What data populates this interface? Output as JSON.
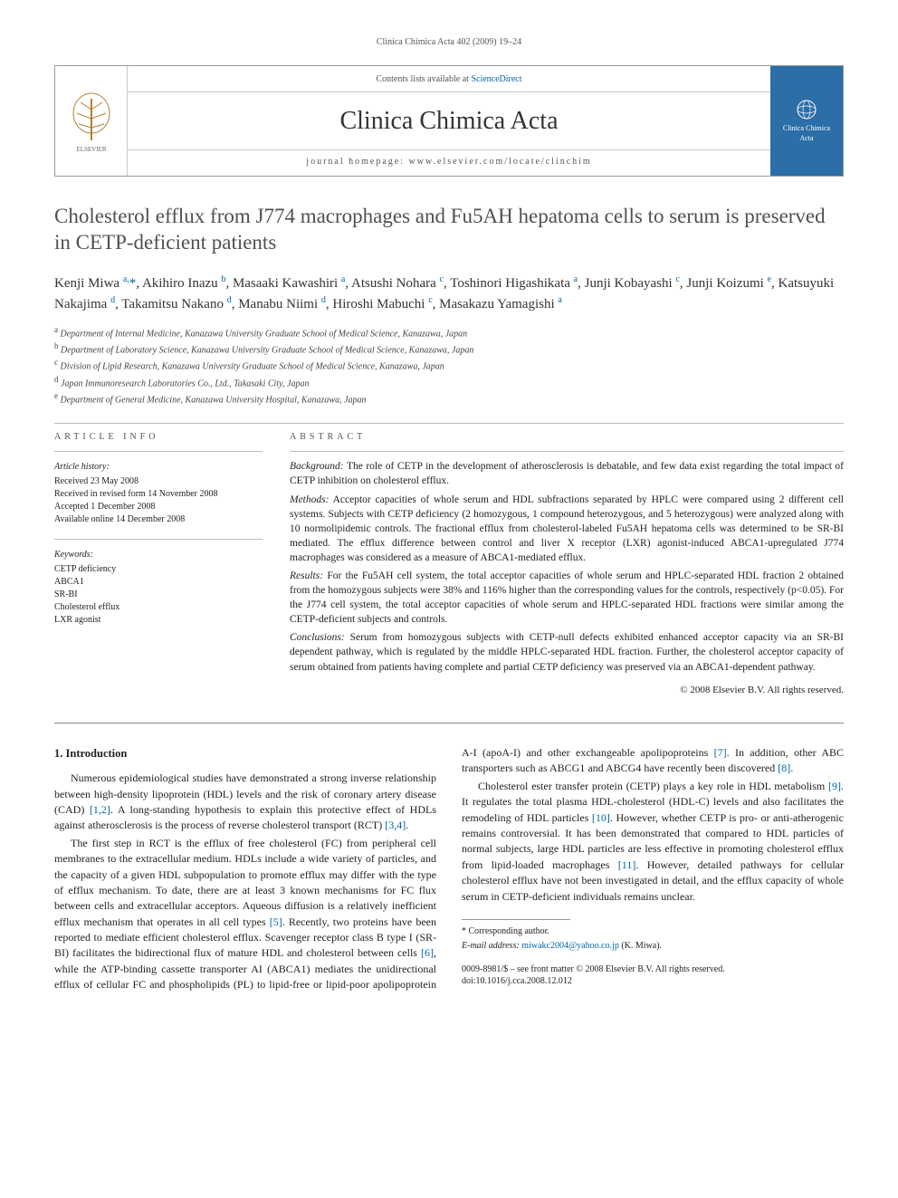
{
  "running_header": "Clinica Chimica Acta 402 (2009) 19–24",
  "masthead": {
    "publisher": "ELSEVIER",
    "contents_line_prefix": "Contents lists available at ",
    "contents_link": "ScienceDirect",
    "journal_name": "Clinica Chimica Acta",
    "homepage_label": "journal homepage: www.elsevier.com/locate/clinchim",
    "cover_badge": "Clinica Chimica Acta"
  },
  "title": "Cholesterol efflux from J774 macrophages and Fu5AH hepatoma cells to serum is preserved in CETP-deficient patients",
  "authors_html": "Kenji Miwa <sup>a,</sup><span class='star'>*</span>, Akihiro Inazu <sup>b</sup>, Masaaki Kawashiri <sup>a</sup>, Atsushi Nohara <sup>c</sup>, Toshinori Higashikata <sup>a</sup>, Junji Kobayashi <sup>c</sup>, Junji Koizumi <sup>e</sup>, Katsuyuki Nakajima <sup>d</sup>, Takamitsu Nakano <sup>d</sup>, Manabu Niimi <sup>d</sup>, Hiroshi Mabuchi <sup>c</sup>, Masakazu Yamagishi <sup>a</sup>",
  "affiliations": [
    "a Department of Internal Medicine, Kanazawa University Graduate School of Medical Science, Kanazawa, Japan",
    "b Department of Laboratory Science, Kanazawa University Graduate School of Medical Science, Kanazawa, Japan",
    "c Division of Lipid Research, Kanazawa University Graduate School of Medical Science, Kanazawa, Japan",
    "d Japan Immunoresearch Laboratories Co., Ltd., Takasaki City, Japan",
    "e Department of General Medicine, Kanazawa University Hospital, Kanazawa, Japan"
  ],
  "article_info": {
    "label": "ARTICLE INFO",
    "history_label": "Article history:",
    "history": [
      "Received 23 May 2008",
      "Received in revised form 14 November 2008",
      "Accepted 1 December 2008",
      "Available online 14 December 2008"
    ],
    "keywords_label": "Keywords:",
    "keywords": [
      "CETP deficiency",
      "ABCA1",
      "SR-BI",
      "Cholesterol efflux",
      "LXR agonist"
    ]
  },
  "abstract": {
    "label": "ABSTRACT",
    "paragraphs": [
      {
        "run_in": "Background:",
        "text": "The role of CETP in the development of atherosclerosis is debatable, and few data exist regarding the total impact of CETP inhibition on cholesterol efflux."
      },
      {
        "run_in": "Methods:",
        "text": "Acceptor capacities of whole serum and HDL subfractions separated by HPLC were compared using 2 different cell systems. Subjects with CETP deficiency (2 homozygous, 1 compound heterozygous, and 5 heterozygous) were analyzed along with 10 normolipidemic controls. The fractional efflux from cholesterol-labeled Fu5AH hepatoma cells was determined to be SR-BI mediated. The efflux difference between control and liver X receptor (LXR) agonist-induced ABCA1-upregulated J774 macrophages was considered as a measure of ABCA1-mediated efflux."
      },
      {
        "run_in": "Results:",
        "text": "For the Fu5AH cell system, the total acceptor capacities of whole serum and HPLC-separated HDL fraction 2 obtained from the homozygous subjects were 38% and 116% higher than the corresponding values for the controls, respectively (p<0.05). For the J774 cell system, the total acceptor capacities of whole serum and HPLC-separated HDL fractions were similar among the CETP-deficient subjects and controls."
      },
      {
        "run_in": "Conclusions:",
        "text": "Serum from homozygous subjects with CETP-null defects exhibited enhanced acceptor capacity via an SR-BI dependent pathway, which is regulated by the middle HPLC-separated HDL fraction. Further, the cholesterol acceptor capacity of serum obtained from patients having complete and partial CETP deficiency was preserved via an ABCA1-dependent pathway."
      }
    ],
    "copyright": "© 2008 Elsevier B.V. All rights reserved."
  },
  "body": {
    "intro_heading": "1. Introduction",
    "paragraphs": [
      "Numerous epidemiological studies have demonstrated a strong inverse relationship between high-density lipoprotein (HDL) levels and the risk of coronary artery disease (CAD) <span class='cite'>[1,2]</span>. A long-standing hypothesis to explain this protective effect of HDLs against atherosclerosis is the process of reverse cholesterol transport (RCT) <span class='cite'>[3,4]</span>.",
      "The first step in RCT is the efflux of free cholesterol (FC) from peripheral cell membranes to the extracellular medium. HDLs include a wide variety of particles, and the capacity of a given HDL subpopulation to promote efflux may differ with the type of efflux mechanism. To date, there are at least 3 known mechanisms for FC flux between cells and extracellular acceptors. Aqueous diffusion is a relatively inefficient efflux mechanism that operates in all cell types <span class='cite'>[5]</span>. Recently, two proteins have been reported to mediate efficient cholesterol efflux. Scavenger receptor class B type I (SR-BI) facilitates the bidirectional flux of mature HDL and cholesterol between cells <span class='cite'>[6]</span>, while the ATP-binding cassette transporter AI (ABCA1) mediates the unidirectional efflux of cellular FC and phospholipids (PL) to lipid-free or lipid-poor apolipoprotein A-I (apoA-I) and other exchangeable apolipoproteins <span class='cite'>[7]</span>. In addition, other ABC transporters such as ABCG1 and ABCG4 have recently been discovered <span class='cite'>[8]</span>.",
      "Cholesterol ester transfer protein (CETP) plays a key role in HDL metabolism <span class='cite'>[9]</span>. It regulates the total plasma HDL-cholesterol (HDL-C) levels and also facilitates the remodeling of HDL particles <span class='cite'>[10]</span>. However, whether CETP is pro- or anti-atherogenic remains controversial. It has been demonstrated that compared to HDL particles of normal subjects, large HDL particles are less effective in promoting cholesterol efflux from lipid-loaded macrophages <span class='cite'>[11]</span>. However, detailed pathways for cellular cholesterol efflux have not been investigated in detail, and the efflux capacity of whole serum in CETP-deficient individuals remains unclear."
    ]
  },
  "footnote": {
    "corresponding": "* Corresponding author.",
    "email_label": "E-mail address:",
    "email": "miwakc2004@yahoo.co.jp",
    "email_name": "(K. Miwa)."
  },
  "footer": {
    "line1": "0009-8981/$ – see front matter © 2008 Elsevier B.V. All rights reserved.",
    "line2": "doi:10.1016/j.cca.2008.12.012"
  },
  "colors": {
    "link": "#0066aa",
    "cover_bg": "#2b6ea8"
  }
}
